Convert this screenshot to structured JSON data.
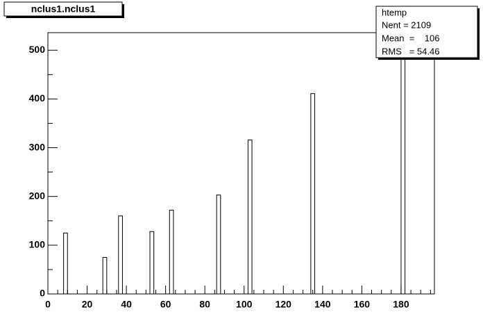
{
  "chart_data": {
    "type": "histogram",
    "title": "nclus1.nclus1",
    "stats_title": "htemp",
    "stats": [
      "Nent = 2109",
      "Mean  =    106",
      "RMS   = 54.46"
    ],
    "bins": [
      0,
      2,
      4,
      6,
      8,
      10,
      12,
      14,
      16,
      18,
      20,
      22,
      24,
      26,
      28,
      30,
      32,
      34,
      36,
      38,
      40,
      42,
      44,
      46,
      48,
      50,
      52,
      54,
      56,
      58,
      60,
      62,
      64,
      66,
      68,
      70,
      72,
      74,
      76,
      78,
      80,
      82,
      84,
      86,
      88,
      90,
      92,
      94,
      96,
      98,
      100,
      102,
      104,
      106,
      108,
      110,
      112,
      114,
      116,
      118,
      120,
      122,
      124,
      126,
      128,
      130,
      132,
      134,
      136,
      138,
      140,
      142,
      144,
      146,
      148,
      150,
      152,
      154,
      156,
      158,
      160,
      162,
      164,
      166,
      168,
      170,
      172,
      174,
      176,
      178,
      180,
      182,
      184,
      186,
      188,
      190,
      192,
      194,
      196
    ],
    "values": [
      0,
      0,
      0,
      0,
      125,
      0,
      0,
      0,
      0,
      0,
      0,
      0,
      0,
      0,
      75,
      0,
      0,
      0,
      160,
      0,
      0,
      0,
      0,
      0,
      0,
      0,
      128,
      0,
      0,
      0,
      0,
      172,
      0,
      0,
      0,
      0,
      0,
      0,
      0,
      0,
      0,
      0,
      0,
      203,
      0,
      0,
      0,
      0,
      0,
      0,
      0,
      316,
      0,
      0,
      0,
      0,
      0,
      0,
      0,
      0,
      0,
      0,
      0,
      0,
      0,
      0,
      0,
      411,
      0,
      0,
      0,
      0,
      0,
      0,
      0,
      0,
      0,
      0,
      0,
      0,
      0,
      0,
      0,
      0,
      0,
      0,
      0,
      0,
      0,
      0,
      520,
      0,
      0,
      0,
      0,
      0,
      0,
      0
    ],
    "color": "#ffffff",
    "xlim": [
      0,
      197
    ],
    "ylim": [
      0,
      536
    ],
    "xticks": [
      0,
      20,
      40,
      60,
      80,
      100,
      120,
      140,
      160,
      180
    ],
    "yticks": [
      0,
      100,
      200,
      300,
      400,
      500
    ]
  }
}
